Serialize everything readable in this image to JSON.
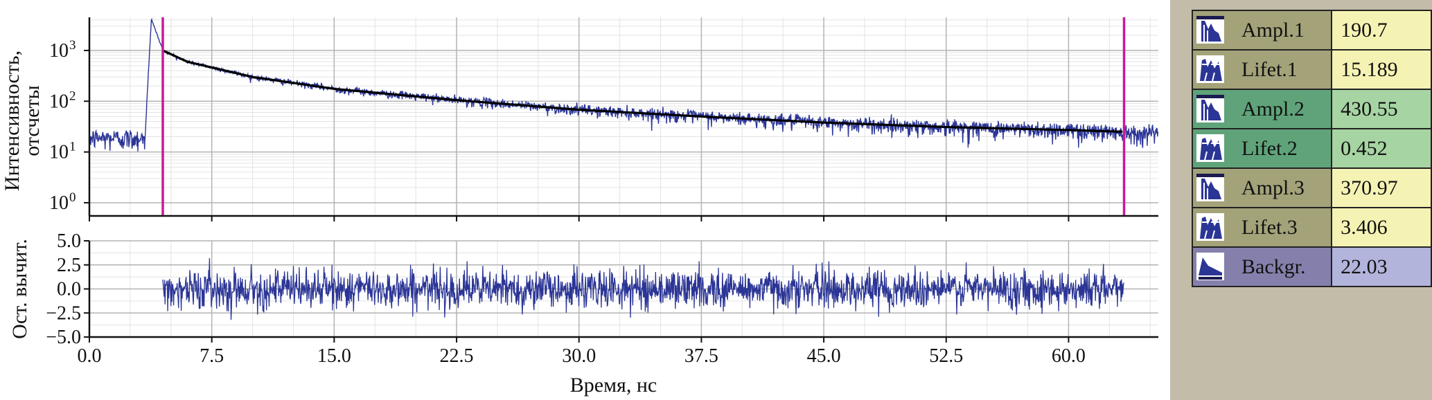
{
  "chart_data": [
    {
      "type": "line",
      "yscale": "log",
      "ylabel": "Интенсивность, отсчеты",
      "xlim": [
        0,
        65.5
      ],
      "ylim": [
        0.55,
        4500
      ],
      "grid": true,
      "yticks": [
        "10^0",
        "10^1",
        "10^2",
        "10^3"
      ],
      "markers_x": [
        4.5,
        63.4
      ],
      "series": [
        {
          "type": "noisy-decay",
          "pre_peak": {
            "x_end": 3.4,
            "level": 19
          },
          "peak": {
            "x": 3.8,
            "y": 4200
          },
          "decay": [
            [
              4.5,
              1000
            ],
            [
              6,
              600
            ],
            [
              10,
              300
            ],
            [
              15,
              175
            ],
            [
              22.5,
              105
            ],
            [
              30,
              68
            ],
            [
              37.5,
              50
            ],
            [
              45,
              38
            ],
            [
              52.5,
              31
            ],
            [
              60,
              27
            ],
            [
              63.4,
              25
            ]
          ],
          "color": "#2b3596"
        },
        {
          "type": "fit",
          "x_start": 4.5,
          "x_end": 63.4,
          "color": "#000000"
        }
      ]
    },
    {
      "type": "line",
      "ylabel": "Ост. вычит.",
      "xlabel": "Время, нс",
      "xlim": [
        0,
        65.5
      ],
      "ylim": [
        -5,
        5
      ],
      "grid": true,
      "xticks": [
        "0.0",
        "7.5",
        "15.0",
        "22.5",
        "30.0",
        "37.5",
        "45.0",
        "52.5",
        "60.0"
      ],
      "yticks": [
        "5.0",
        "2.5",
        "0.0",
        "−2.5",
        "−5.0"
      ],
      "series": [
        {
          "type": "residuals",
          "x_start": 4.5,
          "x_end": 63.4,
          "mean": 0,
          "std": 1,
          "color": "#2b3596"
        }
      ]
    }
  ],
  "params": [
    {
      "icon": "ampl-icon",
      "label": "Ampl.1",
      "value": "190.7",
      "name_bg": "#a3a279",
      "val_bg": "#f5f3b4"
    },
    {
      "icon": "lifet-icon",
      "label": "Lifet.1",
      "value": "15.189",
      "name_bg": "#a3a279",
      "val_bg": "#f5f3b4"
    },
    {
      "icon": "ampl-icon",
      "label": "Ampl.2",
      "value": "430.55",
      "name_bg": "#60a37a",
      "val_bg": "#a6d4a2"
    },
    {
      "icon": "lifet-icon",
      "label": "Lifet.2",
      "value": "0.452",
      "name_bg": "#60a37a",
      "val_bg": "#a6d4a2"
    },
    {
      "icon": "ampl-icon",
      "label": "Ampl.3",
      "value": "370.97",
      "name_bg": "#a3a279",
      "val_bg": "#f5f3b4"
    },
    {
      "icon": "lifet-icon",
      "label": "Lifet.3",
      "value": "3.406",
      "name_bg": "#a3a279",
      "val_bg": "#f5f3b4"
    },
    {
      "icon": "backgr-icon",
      "label": "Backgr.",
      "value": "22.03",
      "name_bg": "#8580ab",
      "val_bg": "#b2b4dc"
    }
  ]
}
